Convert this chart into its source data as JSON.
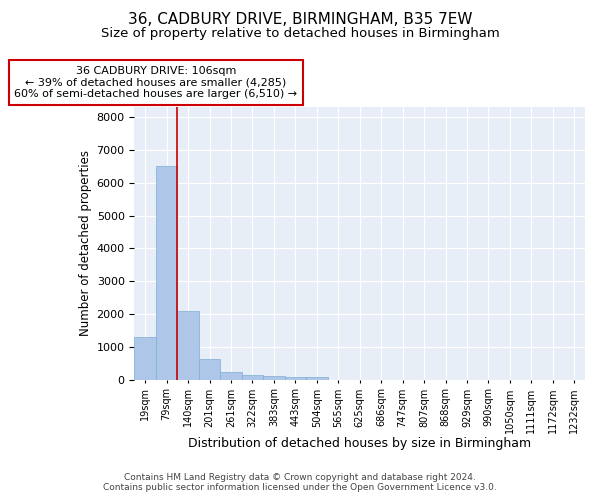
{
  "title": "36, CADBURY DRIVE, BIRMINGHAM, B35 7EW",
  "subtitle": "Size of property relative to detached houses in Birmingham",
  "xlabel": "Distribution of detached houses by size in Birmingham",
  "ylabel": "Number of detached properties",
  "categories": [
    "19sqm",
    "79sqm",
    "140sqm",
    "201sqm",
    "261sqm",
    "322sqm",
    "383sqm",
    "443sqm",
    "504sqm",
    "565sqm",
    "625sqm",
    "686sqm",
    "747sqm",
    "807sqm",
    "868sqm",
    "929sqm",
    "990sqm",
    "1050sqm",
    "1111sqm",
    "1172sqm",
    "1232sqm"
  ],
  "values": [
    1300,
    6500,
    2080,
    620,
    240,
    130,
    100,
    70,
    70,
    0,
    0,
    0,
    0,
    0,
    0,
    0,
    0,
    0,
    0,
    0,
    0
  ],
  "bar_color": "#aec6e8",
  "bar_edgecolor": "#7aafd4",
  "vline_color": "#cc0000",
  "annotation_box_text": "36 CADBURY DRIVE: 106sqm\n← 39% of detached houses are smaller (4,285)\n60% of semi-detached houses are larger (6,510) →",
  "annotation_box_edgecolor": "#cc0000",
  "annotation_box_facecolor": "white",
  "ylim": [
    0,
    8300
  ],
  "yticks": [
    0,
    1000,
    2000,
    3000,
    4000,
    5000,
    6000,
    7000,
    8000
  ],
  "background_color": "#e8eef7",
  "grid_color": "white",
  "footer_line1": "Contains HM Land Registry data © Crown copyright and database right 2024.",
  "footer_line2": "Contains public sector information licensed under the Open Government Licence v3.0.",
  "title_fontsize": 11,
  "subtitle_fontsize": 9.5,
  "xlabel_fontsize": 9,
  "ylabel_fontsize": 8.5,
  "annotation_fontsize": 8
}
